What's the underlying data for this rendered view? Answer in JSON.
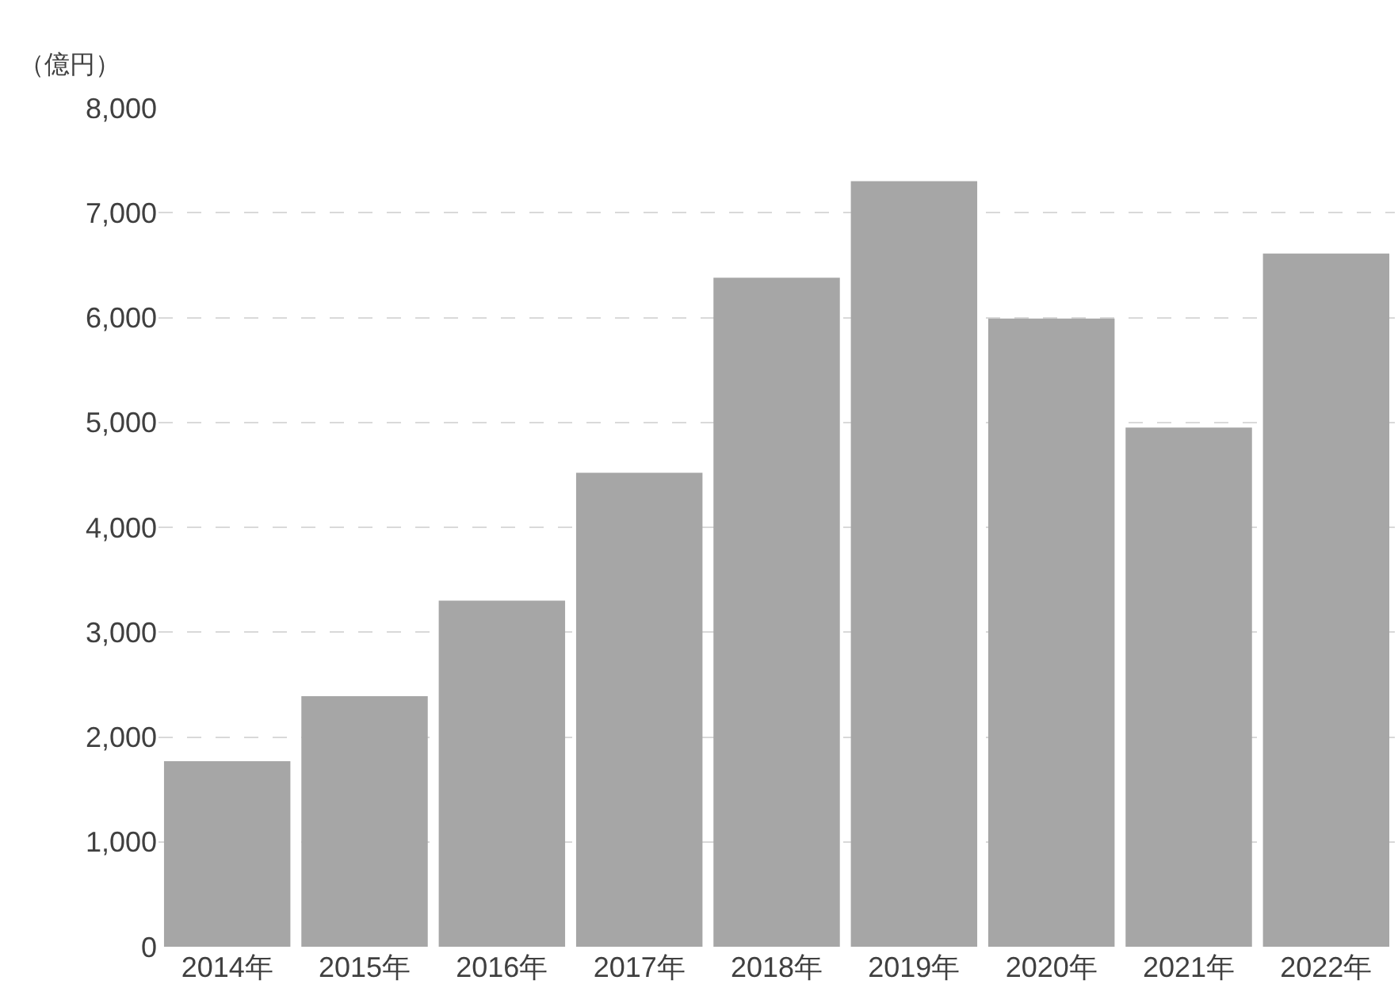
{
  "chart_data": {
    "type": "bar",
    "ylabel": "（億円）",
    "categories": [
      "2014年",
      "2015年",
      "2016年",
      "2017年",
      "2018年",
      "2019年",
      "2020年",
      "2021年",
      "2022年"
    ],
    "values": [
      1770,
      2390,
      3300,
      4520,
      6380,
      7300,
      5990,
      4950,
      6610
    ],
    "color": "#a6a6a6",
    "ylim": [
      0,
      8000
    ],
    "yticks": [
      0,
      {
        "value": 1000,
        "label": "1,000"
      },
      {
        "value": 2000,
        "label": "2,000"
      },
      {
        "value": 3000,
        "label": "3,000"
      },
      {
        "value": 4000,
        "label": "4,000"
      },
      {
        "value": 5000,
        "label": "5,000"
      },
      {
        "value": 6000,
        "label": "6,000"
      },
      {
        "value": 7000,
        "label": "7,000"
      },
      {
        "value": 8000,
        "label": "8,000"
      }
    ],
    "grid": "y"
  }
}
